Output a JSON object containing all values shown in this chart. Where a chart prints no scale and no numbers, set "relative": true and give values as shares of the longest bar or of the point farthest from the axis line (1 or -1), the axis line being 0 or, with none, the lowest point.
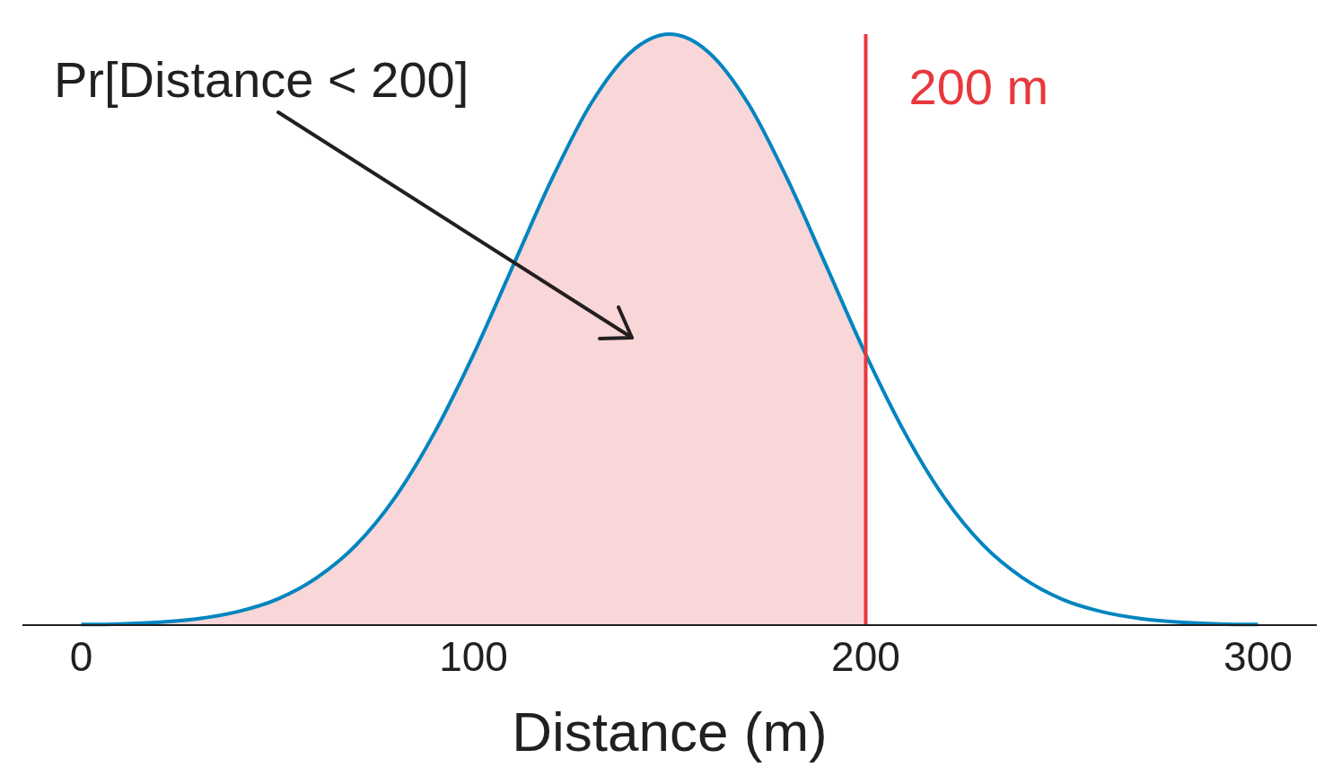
{
  "chart_data": {
    "type": "line",
    "relative": true,
    "xlabel": "Distance (m)",
    "xlim": [
      -15,
      315
    ],
    "xticks": [
      0,
      100,
      200,
      300
    ],
    "tick_labels": "x",
    "marker": "none",
    "series": [
      {
        "type": "area",
        "color": "#f9d6d7",
        "x": [
          0,
          10,
          20,
          30,
          40,
          50,
          60,
          70,
          80,
          90,
          100,
          110,
          120,
          130,
          140,
          150,
          160,
          170,
          180,
          190,
          200
        ],
        "values": [
          0.001,
          0.002,
          0.005,
          0.011,
          0.023,
          0.044,
          0.08,
          0.135,
          0.216,
          0.325,
          0.458,
          0.607,
          0.755,
          0.883,
          0.969,
          1,
          0.969,
          0.883,
          0.755,
          0.607,
          0.458
        ]
      },
      {
        "color": "#0085c0",
        "x": [
          0,
          10,
          20,
          30,
          40,
          50,
          60,
          70,
          80,
          90,
          100,
          110,
          120,
          130,
          140,
          150,
          160,
          170,
          180,
          190,
          200,
          210,
          220,
          230,
          240,
          250,
          260,
          270,
          280,
          290,
          300
        ],
        "values": [
          0.001,
          0.002,
          0.005,
          0.011,
          0.023,
          0.044,
          0.08,
          0.135,
          0.216,
          0.325,
          0.458,
          0.607,
          0.755,
          0.883,
          0.969,
          1,
          0.969,
          0.883,
          0.755,
          0.607,
          0.458,
          0.325,
          0.216,
          0.135,
          0.08,
          0.044,
          0.023,
          0.011,
          0.005,
          0.002,
          0.001
        ]
      }
    ],
    "ref_lines": [
      {
        "axis": "x",
        "value": 200,
        "label": "200 m",
        "color": "#e8383d"
      }
    ],
    "annotations": [
      "Pr[Distance < 200]"
    ]
  }
}
